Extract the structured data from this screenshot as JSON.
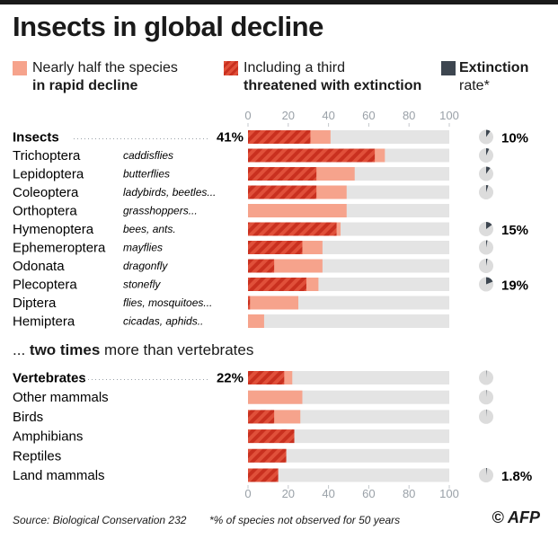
{
  "title": "Insects in global decline",
  "legend": {
    "decline": [
      "Nearly half the species",
      "in rapid decline"
    ],
    "threatened": [
      "Including a third",
      "threatened with extinction"
    ],
    "extinction": [
      "Extinction",
      "rate*"
    ]
  },
  "separator": {
    "pre": "... ",
    "bold": "two times",
    "post": " more than vertebrates"
  },
  "footer": {
    "source": "Source: Biological Conservation 232",
    "note": "*% of species not observed for 50 years",
    "credit": "© AFP"
  },
  "colors": {
    "decline": "#f6a38c",
    "threatened": "#e0503a",
    "extinction": "#3d4650",
    "track": "#e4e4e4"
  },
  "chart_data": {
    "type": "bar",
    "orientation": "horizontal",
    "stacked": false,
    "xlim": [
      0,
      100
    ],
    "ticks": [
      0,
      20,
      40,
      60,
      80,
      100
    ],
    "series_names": [
      "Nearly half the species in rapid decline",
      "Including a third threatened with extinction",
      "Extinction rate*"
    ],
    "groups": [
      {
        "rows": [
          {
            "label": "Insects",
            "sublabel": "",
            "bold": true,
            "summary": "41%",
            "decline": 41,
            "threatened": 31,
            "extinction": 10,
            "extinction_label": "10%"
          },
          {
            "label": "Trichoptera",
            "sublabel": "caddisflies",
            "decline": 68,
            "threatened": 63,
            "extinction": 7
          },
          {
            "label": "Lepidoptera",
            "sublabel": "butterflies",
            "decline": 53,
            "threatened": 34,
            "extinction": 10
          },
          {
            "label": "Coleoptera",
            "sublabel": "ladybirds, beetles...",
            "decline": 49,
            "threatened": 34,
            "extinction": 5
          },
          {
            "label": "Orthoptera",
            "sublabel": "grasshoppers...",
            "decline": 49,
            "threatened": 0,
            "extinction": null
          },
          {
            "label": "Hymenoptera",
            "sublabel": "bees, ants.",
            "decline": 46,
            "threatened": 44,
            "extinction": 15,
            "extinction_label": "15%"
          },
          {
            "label": "Ephemeroptera",
            "sublabel": "mayflies",
            "decline": 37,
            "threatened": 27,
            "extinction": 3
          },
          {
            "label": "Odonata",
            "sublabel": "dragonfly",
            "decline": 37,
            "threatened": 13,
            "extinction": 3
          },
          {
            "label": "Plecoptera",
            "sublabel": "stonefly",
            "decline": 35,
            "threatened": 29,
            "extinction": 19,
            "extinction_label": "19%"
          },
          {
            "label": "Diptera",
            "sublabel": "flies, mosquitoes...",
            "decline": 25,
            "threatened": 1,
            "extinction": null
          },
          {
            "label": "Hemiptera",
            "sublabel": "cicadas, aphids..",
            "decline": 8,
            "threatened": 0,
            "extinction": null
          }
        ]
      },
      {
        "rows": [
          {
            "label": "Vertebrates",
            "sublabel": "",
            "bold": true,
            "summary": "22%",
            "decline": 22,
            "threatened": 18,
            "extinction": 1
          },
          {
            "label": "Other mammals",
            "sublabel": "",
            "decline": 27,
            "threatened": 0,
            "extinction": 1
          },
          {
            "label": "Birds",
            "sublabel": "",
            "decline": 26,
            "threatened": 13,
            "extinction": 1
          },
          {
            "label": "Amphibians",
            "sublabel": "",
            "decline": 23,
            "threatened": 23,
            "extinction": null
          },
          {
            "label": "Reptiles",
            "sublabel": "",
            "decline": 19,
            "threatened": 19,
            "extinction": null
          },
          {
            "label": "Land mammals",
            "sublabel": "",
            "decline": 15,
            "threatened": 15,
            "extinction": 1.8,
            "extinction_label": "1.8%"
          }
        ]
      }
    ]
  }
}
